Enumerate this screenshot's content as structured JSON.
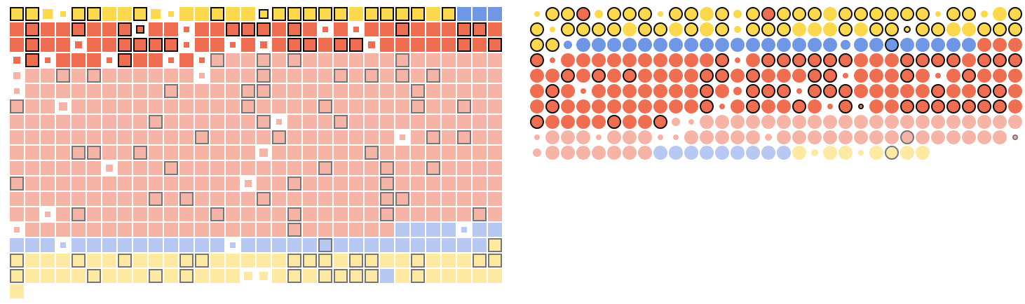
{
  "chart_data": [
    {
      "type": "waffle",
      "shape": "square",
      "colors": [
        "#fcd84c",
        "#ef6e52",
        "#6f97e6",
        "#f6b4a6",
        "#b7c9f2",
        "#fde9a1"
      ],
      "outline_colors": [
        "#111111",
        "#111111",
        "#111111",
        "#777777",
        "#777777",
        "#777777"
      ],
      "groups": [
        [
          [
            0,
            29
          ],
          [
            2,
            3
          ]
        ],
        [
          [
            1,
            32
          ]
        ],
        [
          [
            1,
            32
          ]
        ],
        [
          [
            1,
            13
          ],
          [
            3,
            19
          ]
        ],
        [
          [
            3,
            32
          ]
        ],
        [
          [
            3,
            32
          ]
        ],
        [
          [
            3,
            32
          ]
        ],
        [
          [
            3,
            32
          ]
        ],
        [
          [
            3,
            32
          ]
        ],
        [
          [
            3,
            32
          ]
        ],
        [
          [
            3,
            32
          ]
        ],
        [
          [
            3,
            32
          ]
        ],
        [
          [
            3,
            32
          ]
        ],
        [
          [
            3,
            32
          ]
        ],
        [
          [
            3,
            25
          ],
          [
            4,
            7
          ]
        ],
        [
          [
            4,
            31
          ],
          [
            5,
            1
          ]
        ],
        [
          [
            5,
            32
          ]
        ],
        [
          [
            5,
            24
          ],
          [
            4,
            1
          ],
          [
            5,
            7
          ]
        ],
        [
          [
            5,
            1
          ]
        ]
      ],
      "sizes": [
        [
          0,
          2,
          0.7
        ],
        [
          0,
          3,
          0.4
        ],
        [
          0,
          9,
          0.7
        ],
        [
          0,
          10,
          0.4
        ],
        [
          0,
          16,
          0.7
        ],
        [
          1,
          8,
          0.6
        ],
        [
          1,
          11,
          0.4
        ],
        [
          1,
          20,
          0.4
        ],
        [
          1,
          22,
          0.4
        ],
        [
          2,
          4,
          0.5
        ],
        [
          2,
          11,
          0.4
        ],
        [
          2,
          14,
          0.4
        ],
        [
          2,
          16,
          0.5
        ],
        [
          2,
          23,
          0.5
        ],
        [
          3,
          0,
          0.5
        ],
        [
          3,
          2,
          0.4
        ],
        [
          3,
          6,
          0.4
        ],
        [
          3,
          10,
          0.4
        ],
        [
          3,
          12,
          0.4
        ],
        [
          4,
          0,
          0.5
        ],
        [
          4,
          12,
          0.4
        ],
        [
          5,
          0,
          0.4
        ],
        [
          6,
          3,
          0.6
        ],
        [
          7,
          17,
          0.4
        ],
        [
          8,
          25,
          0.4
        ],
        [
          9,
          16,
          0.6
        ],
        [
          10,
          6,
          0.5
        ],
        [
          11,
          15,
          0.5
        ],
        [
          13,
          2,
          0.4
        ],
        [
          14,
          0,
          0.4
        ],
        [
          14,
          29,
          0.4
        ],
        [
          15,
          3,
          0.4
        ],
        [
          15,
          14,
          0.4
        ],
        [
          17,
          15,
          0.6
        ],
        [
          17,
          16,
          0.6
        ]
      ],
      "outlined": [
        [
          0,
          0
        ],
        [
          0,
          1
        ],
        [
          0,
          4
        ],
        [
          0,
          5
        ],
        [
          0,
          8
        ],
        [
          0,
          13
        ],
        [
          0,
          16
        ],
        [
          0,
          17
        ],
        [
          0,
          18
        ],
        [
          0,
          19
        ],
        [
          0,
          20
        ],
        [
          0,
          21
        ],
        [
          0,
          23
        ],
        [
          0,
          24
        ],
        [
          0,
          25
        ],
        [
          0,
          26
        ],
        [
          0,
          28
        ],
        [
          1,
          1
        ],
        [
          1,
          4
        ],
        [
          1,
          7
        ],
        [
          1,
          8
        ],
        [
          1,
          14
        ],
        [
          1,
          15
        ],
        [
          1,
          16
        ],
        [
          1,
          18
        ],
        [
          1,
          25
        ],
        [
          1,
          29
        ],
        [
          1,
          30
        ],
        [
          2,
          1
        ],
        [
          2,
          7
        ],
        [
          2,
          8
        ],
        [
          2,
          9
        ],
        [
          2,
          10
        ],
        [
          2,
          18
        ],
        [
          2,
          19
        ],
        [
          2,
          21
        ],
        [
          2,
          22
        ],
        [
          2,
          29
        ],
        [
          2,
          31
        ],
        [
          3,
          1
        ],
        [
          3,
          7
        ],
        [
          3,
          13
        ],
        [
          3,
          16
        ],
        [
          3,
          18
        ],
        [
          3,
          25
        ],
        [
          4,
          3
        ],
        [
          4,
          5
        ],
        [
          4,
          16
        ],
        [
          4,
          21
        ],
        [
          4,
          23
        ],
        [
          4,
          25
        ],
        [
          4,
          27
        ],
        [
          5,
          10
        ],
        [
          5,
          15
        ],
        [
          5,
          16
        ],
        [
          5,
          26
        ],
        [
          6,
          0
        ],
        [
          6,
          15
        ],
        [
          6,
          20
        ],
        [
          6,
          26
        ],
        [
          6,
          29
        ],
        [
          7,
          9
        ],
        [
          7,
          16
        ],
        [
          7,
          21
        ],
        [
          8,
          12
        ],
        [
          8,
          17
        ],
        [
          8,
          27
        ],
        [
          8,
          29
        ],
        [
          9,
          4
        ],
        [
          9,
          5
        ],
        [
          9,
          8
        ],
        [
          9,
          23
        ],
        [
          10,
          10
        ],
        [
          10,
          20
        ],
        [
          10,
          24
        ],
        [
          10,
          27
        ],
        [
          11,
          0
        ],
        [
          11,
          18
        ],
        [
          11,
          24
        ],
        [
          12,
          9
        ],
        [
          12,
          11
        ],
        [
          12,
          16
        ],
        [
          12,
          24
        ],
        [
          12,
          25
        ],
        [
          13,
          4
        ],
        [
          13,
          13
        ],
        [
          13,
          18
        ],
        [
          13,
          24
        ],
        [
          13,
          30
        ],
        [
          14,
          18
        ],
        [
          15,
          20
        ],
        [
          15,
          31
        ],
        [
          16,
          0
        ],
        [
          16,
          4
        ],
        [
          16,
          7
        ],
        [
          16,
          11
        ],
        [
          16,
          12
        ],
        [
          16,
          18
        ],
        [
          16,
          19
        ],
        [
          16,
          20
        ],
        [
          16,
          22
        ],
        [
          16,
          23
        ],
        [
          16,
          26
        ],
        [
          16,
          30
        ],
        [
          16,
          31
        ],
        [
          17,
          0
        ],
        [
          17,
          5
        ],
        [
          17,
          9
        ],
        [
          17,
          11
        ],
        [
          17,
          18
        ],
        [
          17,
          20
        ],
        [
          17,
          21
        ],
        [
          17,
          22
        ],
        [
          17,
          23
        ],
        [
          17,
          26
        ]
      ]
    },
    {
      "type": "waffle",
      "shape": "circle",
      "colors": [
        "#fcd84c",
        "#ef6e52",
        "#6f97e6",
        "#f6b4a6",
        "#b7c9f2",
        "#fde9a1"
      ],
      "outline_colors": [
        "#111111",
        "#111111",
        "#111111",
        "#777777",
        "#777777",
        "#777777"
      ],
      "groups": [
        [
          [
            0,
            3
          ],
          [
            1,
            1
          ],
          [
            0,
            11
          ],
          [
            1,
            1
          ],
          [
            0,
            16
          ]
        ],
        [
          [
            0,
            32
          ]
        ],
        [
          [
            0,
            2
          ],
          [
            2,
            27
          ],
          [
            1,
            3
          ]
        ],
        [
          [
            1,
            32
          ]
        ],
        [
          [
            1,
            32
          ]
        ],
        [
          [
            1,
            32
          ]
        ],
        [
          [
            1,
            32
          ]
        ],
        [
          [
            1,
            9
          ],
          [
            3,
            23
          ]
        ],
        [
          [
            3,
            32
          ]
        ],
        [
          [
            3,
            8
          ],
          [
            4,
            9
          ],
          [
            5,
            9
          ]
        ]
      ],
      "sizes": [
        [
          0,
          0,
          0.4
        ],
        [
          0,
          4,
          0.6
        ],
        [
          0,
          8,
          0.4
        ],
        [
          0,
          13,
          0.6
        ],
        [
          0,
          26,
          0.4
        ],
        [
          0,
          29,
          0.5
        ],
        [
          1,
          1,
          0.4
        ],
        [
          1,
          13,
          0.5
        ],
        [
          1,
          24,
          0.5
        ],
        [
          2,
          2,
          0.6
        ],
        [
          2,
          20,
          0.7
        ],
        [
          3,
          1,
          0.4
        ],
        [
          3,
          13,
          0.4
        ],
        [
          4,
          20,
          0.4
        ],
        [
          4,
          26,
          0.4
        ],
        [
          5,
          3,
          0.4
        ],
        [
          5,
          13,
          0.6
        ],
        [
          5,
          17,
          0.4
        ],
        [
          6,
          12,
          0.4
        ],
        [
          6,
          19,
          0.4
        ],
        [
          6,
          21,
          0.4
        ],
        [
          7,
          9,
          0.6
        ],
        [
          7,
          10,
          0.4
        ],
        [
          8,
          0,
          0.4
        ],
        [
          8,
          4,
          0.4
        ],
        [
          8,
          8,
          0.4
        ],
        [
          8,
          9,
          0.4
        ],
        [
          8,
          15,
          0.5
        ],
        [
          8,
          31,
          0.4
        ],
        [
          9,
          0,
          0.6
        ],
        [
          9,
          18,
          0.5
        ],
        [
          9,
          21,
          0.4
        ]
      ],
      "outlined": [
        [
          0,
          1
        ],
        [
          0,
          2
        ],
        [
          0,
          3
        ],
        [
          0,
          5
        ],
        [
          0,
          6
        ],
        [
          0,
          7
        ],
        [
          0,
          9
        ],
        [
          0,
          10
        ],
        [
          0,
          12
        ],
        [
          0,
          14
        ],
        [
          0,
          15
        ],
        [
          0,
          16
        ],
        [
          0,
          17
        ],
        [
          0,
          18
        ],
        [
          0,
          20
        ],
        [
          0,
          21
        ],
        [
          0,
          22
        ],
        [
          0,
          23
        ],
        [
          0,
          24
        ],
        [
          0,
          25
        ],
        [
          0,
          27
        ],
        [
          0,
          28
        ],
        [
          0,
          31
        ],
        [
          1,
          0
        ],
        [
          1,
          2
        ],
        [
          1,
          3
        ],
        [
          1,
          4
        ],
        [
          1,
          5
        ],
        [
          1,
          7
        ],
        [
          1,
          8
        ],
        [
          1,
          10
        ],
        [
          1,
          12
        ],
        [
          1,
          14
        ],
        [
          1,
          15
        ],
        [
          1,
          16
        ],
        [
          1,
          20
        ],
        [
          1,
          22
        ],
        [
          1,
          23
        ],
        [
          1,
          24
        ],
        [
          1,
          25
        ],
        [
          1,
          26
        ],
        [
          1,
          29
        ],
        [
          1,
          30
        ],
        [
          1,
          31
        ],
        [
          2,
          0
        ],
        [
          2,
          1
        ],
        [
          2,
          23
        ],
        [
          3,
          0
        ],
        [
          3,
          12
        ],
        [
          3,
          15
        ],
        [
          3,
          16
        ],
        [
          3,
          17
        ],
        [
          3,
          18
        ],
        [
          3,
          19
        ],
        [
          3,
          20
        ],
        [
          3,
          24
        ],
        [
          3,
          25
        ],
        [
          3,
          26
        ],
        [
          3,
          27
        ],
        [
          3,
          29
        ],
        [
          3,
          30
        ],
        [
          3,
          31
        ],
        [
          4,
          2
        ],
        [
          4,
          4
        ],
        [
          4,
          6
        ],
        [
          4,
          11
        ],
        [
          4,
          12
        ],
        [
          4,
          14
        ],
        [
          4,
          18
        ],
        [
          4,
          19
        ],
        [
          4,
          24
        ],
        [
          4,
          28
        ],
        [
          5,
          1
        ],
        [
          5,
          11
        ],
        [
          5,
          14
        ],
        [
          5,
          15
        ],
        [
          5,
          16
        ],
        [
          5,
          18
        ],
        [
          5,
          19
        ],
        [
          5,
          20
        ],
        [
          5,
          26
        ],
        [
          5,
          29
        ],
        [
          5,
          30
        ],
        [
          6,
          1
        ],
        [
          6,
          11
        ],
        [
          6,
          14
        ],
        [
          6,
          17
        ],
        [
          6,
          20
        ],
        [
          6,
          21
        ],
        [
          6,
          24
        ],
        [
          6,
          25
        ],
        [
          6,
          26
        ],
        [
          6,
          27
        ],
        [
          6,
          28
        ],
        [
          6,
          29
        ],
        [
          6,
          30
        ],
        [
          7,
          0
        ],
        [
          7,
          5
        ],
        [
          7,
          8
        ],
        [
          8,
          24
        ],
        [
          8,
          31
        ],
        [
          9,
          23
        ]
      ]
    }
  ]
}
